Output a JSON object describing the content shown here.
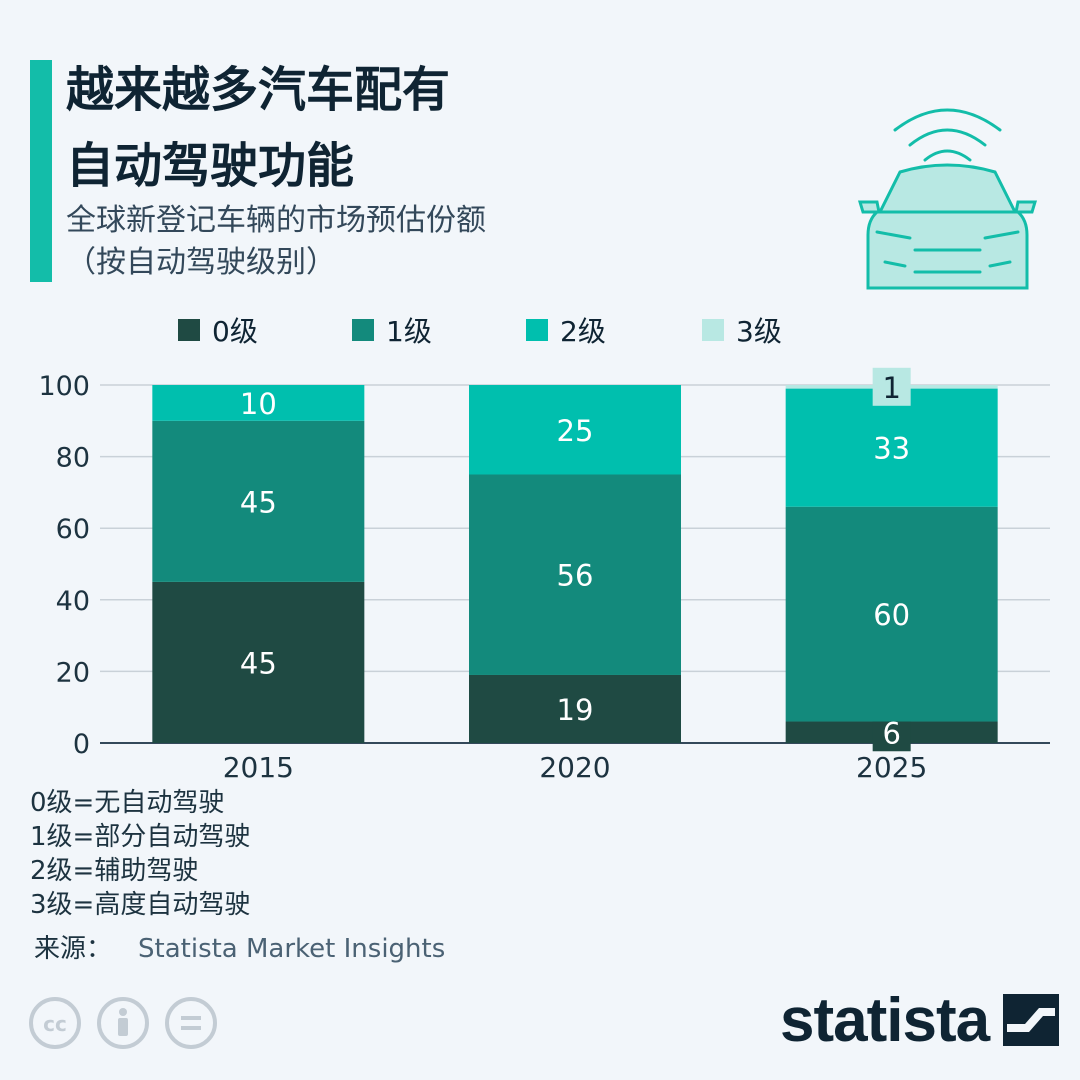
{
  "header": {
    "title_line1": "越来越多汽车配有",
    "title_line2": "自动驾驶功能",
    "subtitle_line1": "全球新登记车辆的市场预估份额",
    "subtitle_line2": "（按自动驾驶级别）"
  },
  "legend": [
    {
      "label": "0级",
      "color": "#1f4a43"
    },
    {
      "label": "1级",
      "color": "#138a7c"
    },
    {
      "label": "2级",
      "color": "#00bfae"
    },
    {
      "label": "3级",
      "color": "#b8e8e3"
    }
  ],
  "chart_data": {
    "type": "bar",
    "stacked": true,
    "title": "越来越多汽车配有自动驾驶功能",
    "subtitle": "全球新登记车辆的市场预估份额（按自动驾驶级别）",
    "categories": [
      "2015",
      "2020",
      "2025"
    ],
    "series": [
      {
        "name": "0级",
        "values": [
          45,
          19,
          6
        ],
        "color": "#1f4a43"
      },
      {
        "name": "1级",
        "values": [
          45,
          56,
          60
        ],
        "color": "#138a7c"
      },
      {
        "name": "2级",
        "values": [
          10,
          25,
          33
        ],
        "color": "#00bfae"
      },
      {
        "name": "3级",
        "values": [
          0,
          0,
          1
        ],
        "color": "#b8e8e3"
      }
    ],
    "yticks": [
      "0",
      "20",
      "40",
      "60",
      "80",
      "100"
    ],
    "ylim": [
      0,
      100
    ],
    "xlabel": "",
    "ylabel": "",
    "grid": true,
    "legend_position": "top"
  },
  "notes": [
    "0级=无自动驾驶",
    "1级=部分自动驾驶",
    "2级=辅助驾驶",
    "3级=高度自动驾驶"
  ],
  "source": {
    "label": "来源：",
    "value": "Statista Market Insights"
  },
  "brand": {
    "name": "statista"
  }
}
